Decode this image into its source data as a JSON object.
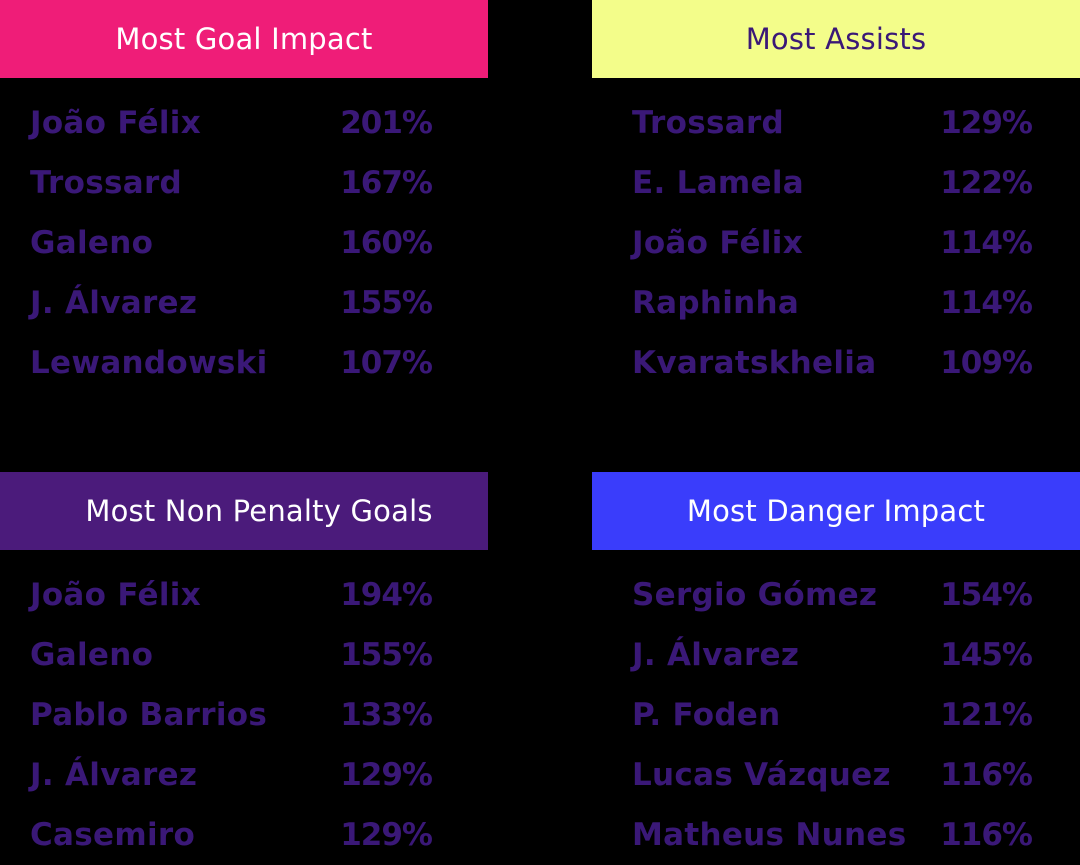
{
  "colors": {
    "background": "#000000",
    "row_text": "#3a1877"
  },
  "panels": [
    {
      "title": "Most Goal Impact",
      "header_bg": "#ef1d78",
      "header_fg": "#ffffff",
      "rows": [
        {
          "name": "João Félix",
          "value": "201%"
        },
        {
          "name": "Trossard",
          "value": "167%"
        },
        {
          "name": "Galeno",
          "value": "160%"
        },
        {
          "name": "J. Álvarez",
          "value": "155%"
        },
        {
          "name": "Lewandowski",
          "value": "107%"
        }
      ]
    },
    {
      "title": "Most Assists",
      "header_bg": "#f3fd8a",
      "header_fg": "#3a1877",
      "rows": [
        {
          "name": "Trossard",
          "value": "129%"
        },
        {
          "name": "E. Lamela",
          "value": "122%"
        },
        {
          "name": "João Félix",
          "value": "114%"
        },
        {
          "name": "Raphinha",
          "value": "114%"
        },
        {
          "name": "Kvaratskhelia",
          "value": "109%"
        }
      ]
    },
    {
      "title": "Most Non Penalty Goals",
      "header_bg": "#4b1b7b",
      "header_fg": "#ffffff",
      "rows": [
        {
          "name": "João Félix",
          "value": "194%"
        },
        {
          "name": "Galeno",
          "value": "155%"
        },
        {
          "name": "Pablo Barrios",
          "value": "133%"
        },
        {
          "name": "J. Álvarez",
          "value": "129%"
        },
        {
          "name": "Casemiro",
          "value": "129%"
        }
      ]
    },
    {
      "title": "Most Danger Impact",
      "header_bg": "#3a3dfb",
      "header_fg": "#ffffff",
      "rows": [
        {
          "name": "Sergio Gómez",
          "value": "154%"
        },
        {
          "name": "J. Álvarez",
          "value": "145%"
        },
        {
          "name": "P. Foden",
          "value": "121%"
        },
        {
          "name": "Lucas Vázquez",
          "value": "116%"
        },
        {
          "name": "Matheus Nunes",
          "value": "116%"
        }
      ]
    }
  ]
}
